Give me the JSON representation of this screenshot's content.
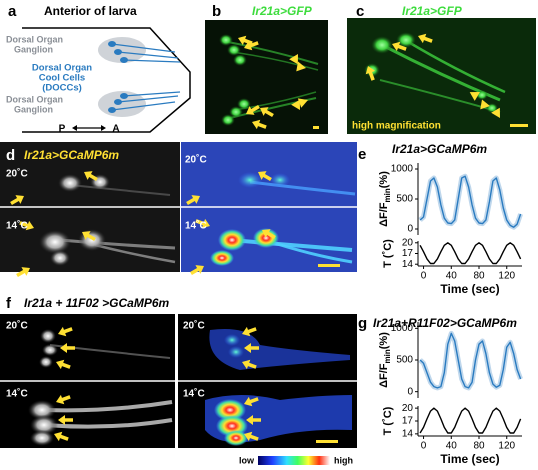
{
  "panels": {
    "a": {
      "letter": "a",
      "title": "Anterior of larva",
      "ganglion_top": [
        "Dorsal Organ",
        "Ganglion"
      ],
      "doccs": [
        "Dorsal Organ",
        "Cool Cells",
        "(DOCCs)"
      ],
      "ganglion_bottom": [
        "Dorsal Organ",
        "Ganglion"
      ],
      "posterior": "P",
      "anterior": "A"
    },
    "b": {
      "letter": "b",
      "label": "Ir21a>GFP"
    },
    "c": {
      "letter": "c",
      "label": "Ir21a>GFP",
      "note": "high magnification"
    },
    "d": {
      "letter": "d",
      "label": "Ir21a>GCaMP6m",
      "temps": [
        "20˚C",
        "20˚C",
        "14˚C",
        "14˚C"
      ]
    },
    "f": {
      "letter": "f",
      "label": "Ir21a + 11F02 >GCaMP6m",
      "temps": [
        "20˚C",
        "20˚C",
        "14˚C",
        "14˚C"
      ],
      "colorbar": [
        "low",
        "high"
      ]
    }
  },
  "chart_data": [
    {
      "type": "line",
      "panel": "e",
      "title": "Ir21a>GCaMP6m",
      "ylabel": "ΔF/F",
      "ylabel_sub": "min",
      "ylabel_unit": "(%)",
      "color": "#2a7bc0",
      "x": [
        -5,
        0,
        5,
        10,
        15,
        20,
        25,
        30,
        35,
        40,
        45,
        50,
        55,
        60,
        65,
        70,
        75,
        80,
        85,
        90,
        95,
        100,
        105,
        110,
        115,
        120,
        125,
        130,
        135,
        140
      ],
      "values": [
        150,
        200,
        500,
        800,
        850,
        700,
        400,
        180,
        100,
        90,
        150,
        500,
        850,
        880,
        700,
        400,
        180,
        100,
        90,
        150,
        450,
        800,
        850,
        650,
        350,
        150,
        60,
        30,
        80,
        250
      ],
      "xlim": [
        -8,
        142
      ],
      "ylim": [
        -100,
        1100
      ],
      "yticks": [
        0,
        500,
        1000
      ]
    },
    {
      "type": "line",
      "ylabel": "T (˚C)",
      "xlabel": "Time (sec)",
      "color": "#000000",
      "x": [
        -5,
        0,
        5,
        10,
        15,
        20,
        25,
        30,
        35,
        40,
        45,
        50,
        55,
        60,
        65,
        70,
        75,
        80,
        85,
        90,
        95,
        100,
        105,
        110,
        115,
        120,
        125,
        130,
        135,
        140
      ],
      "values": [
        19.3,
        17.5,
        15.5,
        14.2,
        14.2,
        15.5,
        17.5,
        19.3,
        20,
        19.3,
        17.5,
        15.5,
        14.2,
        14.2,
        15.5,
        17.5,
        19.3,
        20,
        19.3,
        17.5,
        15.5,
        14.2,
        14.2,
        15.5,
        17.5,
        19.3,
        20,
        19.3,
        17.5,
        15.5
      ],
      "xlim": [
        -8,
        142
      ],
      "ylim": [
        13.5,
        20.5
      ],
      "yticks": [
        14,
        17,
        20
      ],
      "xticks": [
        0,
        40,
        80,
        120
      ]
    },
    {
      "type": "line",
      "panel": "g",
      "title": "Ir21a+R11F02>GCaMP6m",
      "ylabel": "ΔF/F",
      "ylabel_sub": "min",
      "ylabel_unit": "(%)",
      "color": "#2a7bc0",
      "x": [
        -5,
        0,
        5,
        10,
        15,
        20,
        25,
        30,
        35,
        40,
        45,
        50,
        55,
        60,
        65,
        70,
        75,
        80,
        85,
        90,
        95,
        100,
        105,
        110,
        115,
        120,
        125,
        130,
        135,
        140
      ],
      "values": [
        500,
        450,
        300,
        150,
        80,
        60,
        80,
        300,
        750,
        920,
        800,
        500,
        200,
        80,
        60,
        150,
        500,
        750,
        800,
        600,
        300,
        120,
        70,
        100,
        350,
        700,
        780,
        600,
        350,
        200
      ],
      "xlim": [
        -8,
        142
      ],
      "ylim": [
        -100,
        1100
      ],
      "yticks": [
        0,
        500,
        1000
      ]
    },
    {
      "type": "line",
      "ylabel": "T (˚C)",
      "xlabel": "Time (sec)",
      "color": "#000000",
      "x": [
        -5,
        0,
        5,
        10,
        15,
        20,
        25,
        30,
        35,
        40,
        45,
        50,
        55,
        60,
        65,
        70,
        75,
        80,
        85,
        90,
        95,
        100,
        105,
        110,
        115,
        120,
        125,
        130,
        135,
        140
      ],
      "values": [
        14.2,
        15.5,
        17.5,
        19.3,
        20,
        19.3,
        17.5,
        15.5,
        14.2,
        14.2,
        15.5,
        17.5,
        19.3,
        20,
        19.3,
        17.5,
        15.5,
        14.2,
        14.2,
        15.5,
        17.5,
        19.3,
        20,
        19.3,
        17.5,
        15.5,
        14.2,
        14.2,
        15.5,
        17.5
      ],
      "xlim": [
        -8,
        142
      ],
      "ylim": [
        13.5,
        20.5
      ],
      "yticks": [
        14,
        17,
        20
      ],
      "xticks": [
        0,
        40,
        80,
        120
      ]
    }
  ]
}
